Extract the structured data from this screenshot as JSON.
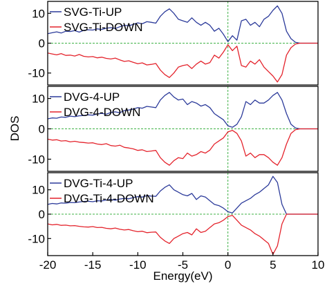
{
  "chart_data": {
    "type": "line",
    "xlabel": "Energy(eV)",
    "ylabel": "DOS",
    "xlim": [
      -20,
      10
    ],
    "x_ticks": [
      -20,
      -15,
      -10,
      -5,
      0,
      5,
      10
    ],
    "fermi_level": 0,
    "colors": {
      "up": "#2b3a9a",
      "down": "#e4222b",
      "reference": "#3cb043",
      "axis": "#000000"
    },
    "panels": [
      {
        "ylim": [
          -14,
          14
        ],
        "y_ticks": [
          10,
          0,
          -10
        ],
        "series": [
          {
            "name": "SVG-Ti-UP",
            "color": "#2b3a9a",
            "x": [
              -20,
              -19.5,
              -19,
              -18.5,
              -18,
              -17.5,
              -17,
              -16.5,
              -16,
              -15.5,
              -15,
              -14.5,
              -14,
              -13.5,
              -13,
              -12.5,
              -12,
              -11.5,
              -11,
              -10.5,
              -10,
              -9.5,
              -9,
              -8.5,
              -8,
              -7.5,
              -7,
              -6.5,
              -6,
              -5.5,
              -5,
              -4.5,
              -4,
              -3.5,
              -3,
              -2.5,
              -2,
              -1.5,
              -1,
              -0.5,
              0,
              0.5,
              1,
              1.5,
              2,
              2.5,
              3,
              3.5,
              4,
              4.5,
              5,
              5.5,
              6,
              6.5,
              7,
              7.5,
              8,
              8.5,
              9,
              9.5,
              10
            ],
            "y": [
              3.2,
              3.5,
              3.8,
              3.4,
              4,
              3.9,
              4.2,
              3.7,
              4.3,
              4.5,
              4.4,
              4.8,
              4.6,
              5,
              5.2,
              4.9,
              5.5,
              6,
              5.8,
              6.3,
              6.8,
              6.5,
              7.2,
              7,
              6.7,
              9,
              10.5,
              11.5,
              10,
              8,
              7.5,
              7,
              8.5,
              7,
              6,
              7,
              6,
              4,
              5,
              3,
              0.5,
              2.5,
              1,
              7.5,
              8,
              6,
              7,
              5.5,
              8,
              9,
              11,
              12.5,
              10,
              4,
              1.5,
              0.3,
              0,
              0,
              0,
              0,
              0
            ]
          },
          {
            "name": "SVG-Ti-DOWN",
            "color": "#e4222b",
            "x": [
              -20,
              -19.5,
              -19,
              -18.5,
              -18,
              -17.5,
              -17,
              -16.5,
              -16,
              -15.5,
              -15,
              -14.5,
              -14,
              -13.5,
              -13,
              -12.5,
              -12,
              -11.5,
              -11,
              -10.5,
              -10,
              -9.5,
              -9,
              -8.5,
              -8,
              -7.5,
              -7,
              -6.5,
              -6,
              -5.5,
              -5,
              -4.5,
              -4,
              -3.5,
              -3,
              -2.5,
              -2,
              -1.5,
              -1,
              -0.5,
              0,
              0.5,
              1,
              1.5,
              2,
              2.5,
              3,
              3.5,
              4,
              4.5,
              5,
              5.5,
              6,
              6.5,
              7,
              7.5,
              8,
              8.5,
              9,
              9.5,
              10
            ],
            "y": [
              -3.3,
              -3.6,
              -3.9,
              -3.5,
              -4.1,
              -4,
              -4.3,
              -3.8,
              -4.4,
              -4.6,
              -4.5,
              -4.9,
              -4.7,
              -5.1,
              -5.3,
              -5,
              -5.6,
              -6.1,
              -5.9,
              -6.4,
              -6.9,
              -6.6,
              -7.3,
              -7.1,
              -6.8,
              -9,
              -10.5,
              -11.5,
              -10,
              -8,
              -7.5,
              -7.2,
              -8.5,
              -7,
              -6,
              -7,
              -6.5,
              -4,
              -5,
              -3,
              -0.5,
              -2.5,
              -1,
              -7.5,
              -8,
              -6,
              -7,
              -5.5,
              -8,
              -9.5,
              -11,
              -13,
              -10.5,
              -4,
              -1.5,
              -0.3,
              0,
              0,
              0,
              0,
              0
            ]
          }
        ]
      },
      {
        "ylim": [
          -14,
          14
        ],
        "y_ticks": [
          10,
          0,
          -10
        ],
        "series": [
          {
            "name": "DVG-4-UP",
            "color": "#2b3a9a",
            "x": [
              -20,
              -19.5,
              -19,
              -18.5,
              -18,
              -17.5,
              -17,
              -16.5,
              -16,
              -15.5,
              -15,
              -14.5,
              -14,
              -13.5,
              -13,
              -12.5,
              -12,
              -11.5,
              -11,
              -10.5,
              -10,
              -9.5,
              -9,
              -8.5,
              -8,
              -7.5,
              -7,
              -6.5,
              -6,
              -5.5,
              -5,
              -4.5,
              -4,
              -3.5,
              -3,
              -2.5,
              -2,
              -1.5,
              -1,
              -0.5,
              0,
              0.5,
              1,
              1.5,
              2,
              2.5,
              3,
              3.5,
              4,
              4.5,
              5,
              5.5,
              6,
              6.5,
              7,
              7.5,
              8,
              8.5,
              9,
              9.5,
              10
            ],
            "y": [
              3.3,
              3.6,
              3.5,
              3.9,
              3.8,
              4.2,
              4,
              4.3,
              4.4,
              4.6,
              4.5,
              4.9,
              5.1,
              4.8,
              5.4,
              5.6,
              5.3,
              6,
              6.2,
              6.5,
              7,
              6.8,
              7.4,
              7.2,
              7,
              9.5,
              11,
              12,
              10.5,
              9.5,
              9.8,
              8,
              9,
              8.5,
              7.5,
              8,
              7,
              5,
              4,
              3,
              1,
              0.5,
              1.5,
              4,
              9,
              8,
              9.5,
              8.5,
              8.5,
              9.5,
              11,
              12,
              9.5,
              5,
              1.5,
              0.3,
              0,
              0,
              0,
              0,
              0
            ]
          },
          {
            "name": "DVG-4-DOWN",
            "color": "#e4222b",
            "x": [
              -20,
              -19.5,
              -19,
              -18.5,
              -18,
              -17.5,
              -17,
              -16.5,
              -16,
              -15.5,
              -15,
              -14.5,
              -14,
              -13.5,
              -13,
              -12.5,
              -12,
              -11.5,
              -11,
              -10.5,
              -10,
              -9.5,
              -9,
              -8.5,
              -8,
              -7.5,
              -7,
              -6.5,
              -6,
              -5.5,
              -5,
              -4.5,
              -4,
              -3.5,
              -3,
              -2.5,
              -2,
              -1.5,
              -1,
              -0.5,
              0,
              0.5,
              1,
              1.5,
              2,
              2.5,
              3,
              3.5,
              4,
              4.5,
              5,
              5.5,
              6,
              6.5,
              7,
              7.5,
              8,
              8.5,
              9,
              9.5,
              10
            ],
            "y": [
              -3.4,
              -3.7,
              -3.6,
              -4,
              -3.9,
              -4.3,
              -4.1,
              -4.4,
              -4.5,
              -4.7,
              -4.6,
              -5,
              -5.2,
              -4.9,
              -5.5,
              -5.7,
              -5.4,
              -6.1,
              -6.3,
              -6.6,
              -7.1,
              -6.9,
              -7.5,
              -7.3,
              -7.1,
              -9.5,
              -11,
              -12,
              -10.5,
              -9.5,
              -9.8,
              -8,
              -9,
              -8.5,
              -7.5,
              -8,
              -7,
              -5,
              -4,
              -3,
              -1,
              -0.5,
              -1.5,
              -4,
              -9,
              -8,
              -9.5,
              -8.5,
              -8.5,
              -9.5,
              -11,
              -12,
              -9.5,
              -5,
              -1.5,
              -0.3,
              0,
              0,
              0,
              0,
              0
            ]
          }
        ]
      },
      {
        "ylim": [
          -17,
          17
        ],
        "y_ticks": [
          10,
          0,
          -10
        ],
        "series": [
          {
            "name": "DVG-Ti-4-UP",
            "color": "#2b3a9a",
            "x": [
              -20,
              -19.5,
              -19,
              -18.5,
              -18,
              -17.5,
              -17,
              -16.5,
              -16,
              -15.5,
              -15,
              -14.5,
              -14,
              -13.5,
              -13,
              -12.5,
              -12,
              -11.5,
              -11,
              -10.5,
              -10,
              -9.5,
              -9,
              -8.5,
              -8,
              -7.5,
              -7,
              -6.5,
              -6,
              -5.5,
              -5,
              -4.5,
              -4,
              -3.5,
              -3,
              -2.5,
              -2,
              -1.5,
              -1,
              -0.5,
              0,
              0.5,
              1,
              1.5,
              2,
              2.5,
              3,
              3.5,
              4,
              4.5,
              5,
              5.5,
              6,
              6.5,
              7,
              7.5,
              8,
              8.5,
              9,
              9.5,
              10
            ],
            "y": [
              4,
              4.4,
              4.2,
              4.6,
              4.5,
              4.8,
              4.7,
              5,
              5.2,
              5.3,
              5.1,
              5.5,
              5.4,
              5.8,
              6,
              5.7,
              6.2,
              6.5,
              6.3,
              6.8,
              7.2,
              7,
              7.6,
              7.4,
              7.3,
              9.5,
              11,
              12,
              10,
              9,
              8,
              7.5,
              8.5,
              6,
              7.5,
              7,
              5.5,
              4,
              3.5,
              2.5,
              1,
              0.5,
              2.5,
              4.5,
              5.5,
              6.5,
              8,
              9,
              10.5,
              12,
              15.5,
              13,
              4,
              0,
              0,
              0,
              0,
              0,
              0,
              0,
              0
            ]
          },
          {
            "name": "DVG-Ti-4-DOWN",
            "color": "#e4222b",
            "x": [
              -20,
              -19.5,
              -19,
              -18.5,
              -18,
              -17.5,
              -17,
              -16.5,
              -16,
              -15.5,
              -15,
              -14.5,
              -14,
              -13.5,
              -13,
              -12.5,
              -12,
              -11.5,
              -11,
              -10.5,
              -10,
              -9.5,
              -9,
              -8.5,
              -8,
              -7.5,
              -7,
              -6.5,
              -6,
              -5.5,
              -5,
              -4.5,
              -4,
              -3.5,
              -3,
              -2.5,
              -2,
              -1.5,
              -1,
              -0.5,
              0,
              0.5,
              1,
              1.5,
              2,
              2.5,
              3,
              3.5,
              4,
              4.5,
              5,
              5.5,
              6,
              6.5,
              7,
              7.5,
              8,
              8.5,
              9,
              9.5,
              10
            ],
            "y": [
              -4,
              -4.4,
              -4.2,
              -4.6,
              -4.5,
              -4.8,
              -4.7,
              -5,
              -5.2,
              -5.3,
              -5.1,
              -5.5,
              -5.4,
              -5.8,
              -6,
              -5.7,
              -6.2,
              -6.5,
              -6.3,
              -6.8,
              -7.2,
              -7,
              -7.6,
              -7.4,
              -7.3,
              -9.5,
              -11,
              -12,
              -10,
              -9,
              -8,
              -7.5,
              -8.5,
              -6,
              -7.5,
              -7,
              -5.5,
              -4,
              -3.5,
              -2.5,
              -1,
              -0.5,
              -2.5,
              -4.5,
              -5.5,
              -6.5,
              -8,
              -9,
              -10.5,
              -12,
              -16.5,
              -13,
              -4,
              0,
              0,
              0,
              0,
              0,
              0,
              0,
              0
            ]
          }
        ]
      }
    ]
  }
}
